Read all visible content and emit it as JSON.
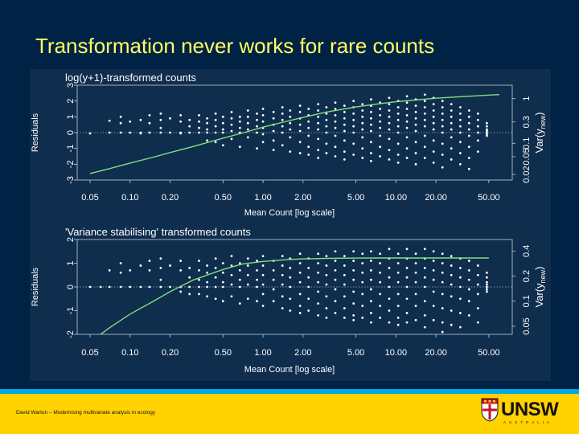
{
  "slide": {
    "title": "Transformation never works for rare counts",
    "footer_text": "David Warton – Modernising multivariate analysis in ecology",
    "logo": {
      "text": "UNSW",
      "subtext": "AUSTRALIA"
    }
  },
  "colors": {
    "background": "#002244",
    "title": "#ffff66",
    "footer_band": "#ffd200",
    "footer_stripe": "#00a8e0",
    "curve": "#80e080",
    "points": "#ffffff"
  },
  "chart_data": [
    {
      "type": "scatter",
      "title": "log(y+1)-transformed counts",
      "xlabel": "Mean Count [log scale]",
      "ylabel": "Residuals",
      "y2label": "Var(y_new)",
      "x_scale": "log",
      "x_range": [
        0.04,
        75
      ],
      "y_range": [
        -3,
        3
      ],
      "x_ticks": [
        0.05,
        0.1,
        0.2,
        0.5,
        1,
        2,
        5,
        10,
        20,
        50
      ],
      "x_tick_labels": [
        "0.05",
        "0.10",
        "0.20",
        "0.50",
        "1.00",
        "2.00",
        "5.00",
        "10.00",
        "20.00",
        "50.00"
      ],
      "y_ticks": [
        -3,
        -2,
        -1,
        0,
        1,
        2,
        3
      ],
      "y_tick_labels": [
        "-3",
        "-2",
        "-1",
        "0",
        "1",
        "2",
        "3"
      ],
      "y2_ticks": [
        0.02,
        0.05,
        0.1,
        0.3,
        1
      ],
      "y2_tick_labels": [
        "0.02",
        "0.05",
        "0.1",
        "0.3",
        "1"
      ],
      "y2_range": [
        0.015,
        2
      ],
      "zero_line": 0,
      "curve": {
        "x": [
          0.05,
          0.07,
          0.1,
          0.15,
          0.2,
          0.3,
          0.5,
          0.7,
          1,
          1.5,
          2,
          3,
          5,
          7,
          10,
          15,
          20,
          30,
          50,
          60
        ],
        "y2": [
          0.021,
          0.027,
          0.036,
          0.049,
          0.062,
          0.085,
          0.13,
          0.17,
          0.23,
          0.31,
          0.38,
          0.5,
          0.65,
          0.75,
          0.85,
          0.95,
          1.02,
          1.1,
          1.2,
          1.23
        ]
      },
      "points": [
        {
          "x": 0.05,
          "y": [
            -0.05
          ]
        },
        {
          "x": 0.07,
          "y": [
            0.75,
            0.0
          ]
        },
        {
          "x": 0.085,
          "y": [
            1.0,
            0.6,
            0.0
          ]
        },
        {
          "x": 0.1,
          "y": [
            0.7,
            0.0
          ]
        },
        {
          "x": 0.12,
          "y": [
            0.8,
            0.0,
            -0.05
          ]
        },
        {
          "x": 0.14,
          "y": [
            1.1,
            0.6,
            0.0
          ]
        },
        {
          "x": 0.17,
          "y": [
            1.2,
            0.8,
            0.3,
            0.0
          ]
        },
        {
          "x": 0.2,
          "y": [
            0.9,
            0.0
          ]
        },
        {
          "x": 0.24,
          "y": [
            1.1,
            0.7,
            0.0,
            -0.05
          ]
        },
        {
          "x": 0.28,
          "y": [
            0.8,
            0.4,
            0.0
          ]
        },
        {
          "x": 0.33,
          "y": [
            1.1,
            0.7,
            0.3,
            0.0
          ]
        },
        {
          "x": 0.38,
          "y": [
            0.9,
            0.6,
            0.2,
            0.0,
            -0.5
          ]
        },
        {
          "x": 0.44,
          "y": [
            1.2,
            0.8,
            0.4,
            0.0,
            -0.6
          ]
        },
        {
          "x": 0.5,
          "y": [
            1.0,
            0.6,
            0.2,
            0.0,
            -0.8
          ]
        },
        {
          "x": 0.58,
          "y": [
            1.3,
            0.9,
            0.5,
            0.1,
            -0.4
          ]
        },
        {
          "x": 0.67,
          "y": [
            1.0,
            0.7,
            0.3,
            0.0,
            -0.9
          ]
        },
        {
          "x": 0.77,
          "y": [
            1.4,
            1.0,
            0.6,
            0.2,
            -0.3
          ]
        },
        {
          "x": 0.9,
          "y": [
            1.2,
            0.8,
            0.4,
            0.0,
            -1.0
          ]
        },
        {
          "x": 1.0,
          "y": [
            1.5,
            1.1,
            0.7,
            0.3,
            -0.1,
            -0.6
          ]
        },
        {
          "x": 1.2,
          "y": [
            1.3,
            0.9,
            0.5,
            0.1,
            -0.5,
            -1.1
          ]
        },
        {
          "x": 1.4,
          "y": [
            1.6,
            1.2,
            0.8,
            0.4,
            0.0,
            -0.8
          ]
        },
        {
          "x": 1.6,
          "y": [
            1.4,
            1.0,
            0.6,
            0.2,
            -0.3,
            -1.2
          ]
        },
        {
          "x": 1.9,
          "y": [
            1.7,
            1.3,
            0.9,
            0.5,
            0.1,
            -0.6,
            -1.3
          ]
        },
        {
          "x": 2.2,
          "y": [
            1.5,
            1.1,
            0.7,
            0.3,
            -0.2,
            -0.9,
            -1.4
          ]
        },
        {
          "x": 2.6,
          "y": [
            1.8,
            1.4,
            1.0,
            0.6,
            0.2,
            -0.4,
            -1.1,
            -1.6
          ]
        },
        {
          "x": 3.0,
          "y": [
            1.6,
            1.2,
            0.8,
            0.4,
            0.0,
            -0.7,
            -1.3
          ]
        },
        {
          "x": 3.5,
          "y": [
            1.9,
            1.5,
            1.1,
            0.7,
            0.3,
            -0.2,
            -0.9,
            -1.5
          ]
        },
        {
          "x": 4.1,
          "y": [
            1.7,
            1.3,
            0.9,
            0.5,
            0.1,
            -0.5,
            -1.2,
            -1.7
          ]
        },
        {
          "x": 4.8,
          "y": [
            2.0,
            1.6,
            1.2,
            0.8,
            0.4,
            0.0,
            -0.7,
            -1.4
          ]
        },
        {
          "x": 5.6,
          "y": [
            1.8,
            1.4,
            1.0,
            0.6,
            0.2,
            -0.3,
            -1.0,
            -1.6
          ]
        },
        {
          "x": 6.5,
          "y": [
            2.1,
            1.7,
            1.3,
            0.9,
            0.5,
            0.1,
            -0.6,
            -1.3,
            -1.8
          ]
        },
        {
          "x": 7.6,
          "y": [
            1.9,
            1.5,
            1.1,
            0.7,
            0.3,
            -0.2,
            -0.9,
            -1.5
          ]
        },
        {
          "x": 8.9,
          "y": [
            2.2,
            1.8,
            1.4,
            1.0,
            0.6,
            0.2,
            -0.4,
            -1.1,
            -1.7
          ]
        },
        {
          "x": 10.4,
          "y": [
            2.0,
            1.6,
            1.2,
            0.8,
            0.4,
            0.0,
            -0.7,
            -1.4,
            -1.9
          ]
        },
        {
          "x": 12.1,
          "y": [
            2.3,
            1.9,
            1.5,
            1.1,
            0.7,
            0.3,
            -0.3,
            -1.0,
            -1.6
          ]
        },
        {
          "x": 14.1,
          "y": [
            2.1,
            1.7,
            1.3,
            0.9,
            0.5,
            0.1,
            -0.6,
            -1.3,
            -2.0
          ]
        },
        {
          "x": 16.5,
          "y": [
            2.4,
            2.0,
            1.6,
            1.2,
            0.8,
            0.4,
            -0.2,
            -0.9,
            -1.6
          ]
        },
        {
          "x": 19.2,
          "y": [
            2.2,
            1.8,
            1.4,
            1.0,
            0.6,
            0.2,
            -0.5,
            -1.2,
            -1.9
          ]
        },
        {
          "x": 22.4,
          "y": [
            2.0,
            1.6,
            1.2,
            0.8,
            0.4,
            0.0,
            -0.7,
            -1.4,
            -2.2
          ]
        },
        {
          "x": 26.1,
          "y": [
            1.8,
            1.4,
            1.0,
            0.6,
            0.2,
            -0.3,
            -1.0,
            -1.7
          ]
        },
        {
          "x": 30.5,
          "y": [
            1.6,
            1.2,
            0.8,
            0.4,
            0.0,
            -0.6,
            -1.3,
            -2.0
          ]
        },
        {
          "x": 35.5,
          "y": [
            1.4,
            1.0,
            0.6,
            0.2,
            -0.2,
            -0.9,
            -1.6,
            -2.3
          ]
        },
        {
          "x": 41.4,
          "y": [
            1.2,
            0.8,
            0.4,
            0.0,
            -0.5,
            -1.2
          ]
        },
        {
          "x": 48.3,
          "y": [
            0.6,
            0.4,
            0.2,
            0.1,
            0.0,
            -0.1,
            -0.2
          ]
        }
      ]
    },
    {
      "type": "scatter",
      "title": "'Variance stabilising' transformed counts",
      "xlabel": "Mean Count [log scale]",
      "ylabel": "Residuals",
      "y2label": "Var(y_new)",
      "x_scale": "log",
      "x_range": [
        0.04,
        75
      ],
      "y_range": [
        -2,
        2
      ],
      "x_ticks": [
        0.05,
        0.1,
        0.2,
        0.5,
        1,
        2,
        5,
        10,
        20,
        50
      ],
      "x_tick_labels": [
        "0.05",
        "0.10",
        "0.20",
        "0.50",
        "1.00",
        "2.00",
        "5.00",
        "10.00",
        "20.00",
        "50.00"
      ],
      "y_ticks": [
        -2,
        -1,
        0,
        1,
        2
      ],
      "y_tick_labels": [
        "-2",
        "-1",
        "0",
        "1",
        "2"
      ],
      "y2_ticks": [
        0.05,
        0.1,
        0.2,
        0.4
      ],
      "y2_tick_labels": [
        "0.05",
        "0.1",
        "0.2",
        "0.4"
      ],
      "y2_range": [
        0.04,
        0.55
      ],
      "zero_line": 0,
      "curve": {
        "x": [
          0.06,
          0.07,
          0.1,
          0.15,
          0.2,
          0.3,
          0.5,
          0.7,
          1,
          1.5,
          2,
          3,
          5,
          7,
          10,
          15,
          20,
          30,
          50
        ],
        "y2": [
          0.04,
          0.048,
          0.07,
          0.1,
          0.13,
          0.18,
          0.24,
          0.28,
          0.3,
          0.315,
          0.322,
          0.326,
          0.329,
          0.33,
          0.33,
          0.33,
          0.33,
          0.33,
          0.33
        ]
      },
      "points": [
        {
          "x": 0.05,
          "y": [
            0.0
          ]
        },
        {
          "x": 0.06,
          "y": [
            0.0
          ]
        },
        {
          "x": 0.07,
          "y": [
            0.7,
            0.0
          ]
        },
        {
          "x": 0.085,
          "y": [
            1.0,
            0.6,
            0.0
          ]
        },
        {
          "x": 0.1,
          "y": [
            0.7,
            0.0
          ]
        },
        {
          "x": 0.12,
          "y": [
            0.9,
            0.0
          ]
        },
        {
          "x": 0.14,
          "y": [
            1.1,
            0.7,
            0.0
          ]
        },
        {
          "x": 0.17,
          "y": [
            1.2,
            0.8,
            0.3,
            0.0
          ]
        },
        {
          "x": 0.2,
          "y": [
            0.9,
            0.0
          ]
        },
        {
          "x": 0.24,
          "y": [
            1.1,
            0.7,
            0.0,
            -0.2
          ]
        },
        {
          "x": 0.28,
          "y": [
            0.8,
            0.4,
            0.0,
            -0.3
          ]
        },
        {
          "x": 0.33,
          "y": [
            1.1,
            0.7,
            0.3,
            0.0,
            -0.3
          ]
        },
        {
          "x": 0.38,
          "y": [
            0.9,
            0.6,
            0.2,
            0.0,
            -0.4
          ]
        },
        {
          "x": 0.44,
          "y": [
            1.2,
            0.8,
            0.4,
            0.0,
            -0.5
          ]
        },
        {
          "x": 0.5,
          "y": [
            1.0,
            0.6,
            0.2,
            0.0,
            -0.6
          ]
        },
        {
          "x": 0.58,
          "y": [
            1.3,
            0.9,
            0.5,
            0.1,
            -0.4
          ]
        },
        {
          "x": 0.67,
          "y": [
            1.0,
            0.7,
            0.3,
            0.0,
            -0.7
          ]
        },
        {
          "x": 0.77,
          "y": [
            1.2,
            0.9,
            0.5,
            0.1,
            -0.5
          ]
        },
        {
          "x": 0.9,
          "y": [
            1.1,
            0.7,
            0.3,
            0.0,
            -0.6
          ]
        },
        {
          "x": 1.0,
          "y": [
            1.3,
            0.9,
            0.5,
            0.1,
            -0.3,
            -0.8
          ]
        },
        {
          "x": 1.2,
          "y": [
            1.1,
            0.7,
            0.3,
            -0.1,
            -0.6
          ]
        },
        {
          "x": 1.4,
          "y": [
            1.3,
            0.9,
            0.5,
            0.1,
            -0.4,
            -0.9
          ]
        },
        {
          "x": 1.6,
          "y": [
            1.2,
            0.8,
            0.4,
            0.0,
            -0.5,
            -1.0
          ]
        },
        {
          "x": 1.9,
          "y": [
            1.4,
            1.0,
            0.6,
            0.2,
            -0.3,
            -0.8,
            -1.1
          ]
        },
        {
          "x": 2.2,
          "y": [
            1.2,
            0.8,
            0.4,
            0.0,
            -0.5,
            -1.0
          ]
        },
        {
          "x": 2.6,
          "y": [
            1.4,
            1.0,
            0.6,
            0.2,
            -0.2,
            -0.7,
            -1.2
          ]
        },
        {
          "x": 3.0,
          "y": [
            1.3,
            0.9,
            0.5,
            0.1,
            -0.4,
            -0.9,
            -1.3
          ]
        },
        {
          "x": 3.5,
          "y": [
            1.5,
            1.1,
            0.7,
            0.3,
            -0.1,
            -0.6,
            -1.1
          ]
        },
        {
          "x": 4.1,
          "y": [
            1.3,
            0.9,
            0.5,
            0.1,
            -0.4,
            -0.9,
            -1.3
          ]
        },
        {
          "x": 4.8,
          "y": [
            1.5,
            1.1,
            0.7,
            0.3,
            -0.2,
            -0.7,
            -1.2,
            -1.4
          ]
        },
        {
          "x": 5.6,
          "y": [
            1.4,
            1.0,
            0.6,
            0.2,
            -0.3,
            -0.8,
            -1.3
          ]
        },
        {
          "x": 6.5,
          "y": [
            1.5,
            1.1,
            0.7,
            0.3,
            -0.1,
            -0.6,
            -1.1,
            -1.5
          ]
        },
        {
          "x": 7.6,
          "y": [
            1.4,
            1.0,
            0.6,
            0.2,
            -0.3,
            -0.8,
            -1.3
          ]
        },
        {
          "x": 8.9,
          "y": [
            1.6,
            1.2,
            0.8,
            0.4,
            0.0,
            -0.5,
            -1.0,
            -1.5
          ]
        },
        {
          "x": 10.4,
          "y": [
            1.4,
            1.0,
            0.6,
            0.2,
            -0.3,
            -0.8,
            -1.3,
            -1.6
          ]
        },
        {
          "x": 12.1,
          "y": [
            1.6,
            1.2,
            0.8,
            0.4,
            0.0,
            -0.5,
            -1.1,
            -1.5
          ]
        },
        {
          "x": 14.1,
          "y": [
            1.4,
            1.0,
            0.6,
            0.2,
            -0.3,
            -0.8,
            -1.4
          ]
        },
        {
          "x": 16.5,
          "y": [
            1.6,
            1.2,
            0.8,
            0.4,
            0.0,
            -0.6,
            -1.2,
            -1.7
          ]
        },
        {
          "x": 19.2,
          "y": [
            1.5,
            1.1,
            0.7,
            0.3,
            -0.2,
            -0.8,
            -1.4
          ]
        },
        {
          "x": 22.4,
          "y": [
            1.4,
            1.0,
            0.6,
            0.2,
            -0.3,
            -0.9,
            -1.5,
            -1.9
          ]
        },
        {
          "x": 26.1,
          "y": [
            1.3,
            0.9,
            0.5,
            0.1,
            -0.4,
            -1.0,
            -1.6
          ]
        },
        {
          "x": 30.5,
          "y": [
            1.2,
            0.8,
            0.4,
            0.0,
            -0.5,
            -1.1,
            -1.7
          ]
        },
        {
          "x": 35.5,
          "y": [
            1.1,
            0.7,
            0.3,
            -0.1,
            -0.6,
            -1.2
          ]
        },
        {
          "x": 41.4,
          "y": [
            0.9,
            0.5,
            0.1,
            -0.3,
            -0.9,
            -1.5
          ]
        },
        {
          "x": 48.3,
          "y": [
            0.6,
            0.4,
            0.2,
            0.1,
            0.0,
            -0.1,
            -0.2
          ]
        }
      ]
    }
  ]
}
